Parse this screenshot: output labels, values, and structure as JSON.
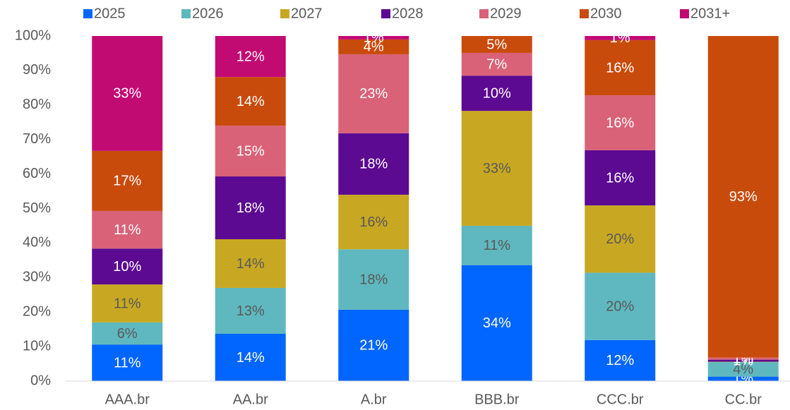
{
  "chart_data": {
    "type": "stacked_bar",
    "categories": [
      "AAA.br",
      "AA.br",
      "A.br",
      "BBB.br",
      "CCC.br",
      "CC.br"
    ],
    "series": [
      {
        "name": "2025",
        "color": "#0066ff",
        "label_color": "#ffffff",
        "values": [
          10.6,
          13.7,
          20.7,
          33.6,
          11.9,
          1.3
        ],
        "value_labels": [
          "11%",
          "14%",
          "21%",
          "34%",
          "12%",
          "1%"
        ]
      },
      {
        "name": "2026",
        "color": "#5fb8bf",
        "label_color": "#595959",
        "values": [
          6.4,
          13.3,
          17.5,
          11.4,
          19.5,
          4.2
        ],
        "value_labels": [
          "6%",
          "13%",
          "18%",
          "11%",
          "20%",
          "4%"
        ]
      },
      {
        "name": "2027",
        "color": "#c8a822",
        "label_color": "#595959",
        "values": [
          11.0,
          14.1,
          15.8,
          33.3,
          19.5,
          0.1
        ],
        "value_labels": [
          "11%",
          "14%",
          "16%",
          "33%",
          "20%",
          null
        ]
      },
      {
        "name": "2028",
        "color": "#5b0a91",
        "label_color": "#ffffff",
        "values": [
          10.4,
          18.2,
          17.8,
          10.2,
          16.0,
          0.6
        ],
        "value_labels": [
          "10%",
          "18%",
          "18%",
          "10%",
          "16%",
          "1%"
        ]
      },
      {
        "name": "2029",
        "color": "#d96278",
        "label_color": "#ffffff",
        "values": [
          10.9,
          14.7,
          22.9,
          6.6,
          15.9,
          0.6
        ],
        "value_labels": [
          "11%",
          "15%",
          "23%",
          "7%",
          "16%",
          "1%"
        ]
      },
      {
        "name": "2030",
        "color": "#c94b0c",
        "label_color": "#ffffff",
        "values": [
          17.4,
          14.1,
          4.3,
          4.9,
          16.0,
          93.2
        ],
        "value_labels": [
          "17%",
          "14%",
          "4%",
          "5%",
          "16%",
          "93%"
        ]
      },
      {
        "name": "2031+",
        "color": "#c20a73",
        "label_color": "#ffffff",
        "values": [
          33.3,
          11.9,
          1.0,
          0,
          1.2,
          0
        ],
        "value_labels": [
          "33%",
          "12%",
          "1%",
          null,
          "1%",
          null
        ]
      }
    ],
    "ylim": [
      0,
      100
    ],
    "yticks": [
      {
        "value": 0,
        "label": "0%"
      },
      {
        "value": 10,
        "label": "10%"
      },
      {
        "value": 20,
        "label": "20%"
      },
      {
        "value": 30,
        "label": "30%"
      },
      {
        "value": 40,
        "label": "40%"
      },
      {
        "value": 50,
        "label": "50%"
      },
      {
        "value": 60,
        "label": "60%"
      },
      {
        "value": 70,
        "label": "70%"
      },
      {
        "value": 80,
        "label": "80%"
      },
      {
        "value": 90,
        "label": "90%"
      },
      {
        "value": 100,
        "label": "100%"
      }
    ],
    "grid": false,
    "legend": "top"
  }
}
